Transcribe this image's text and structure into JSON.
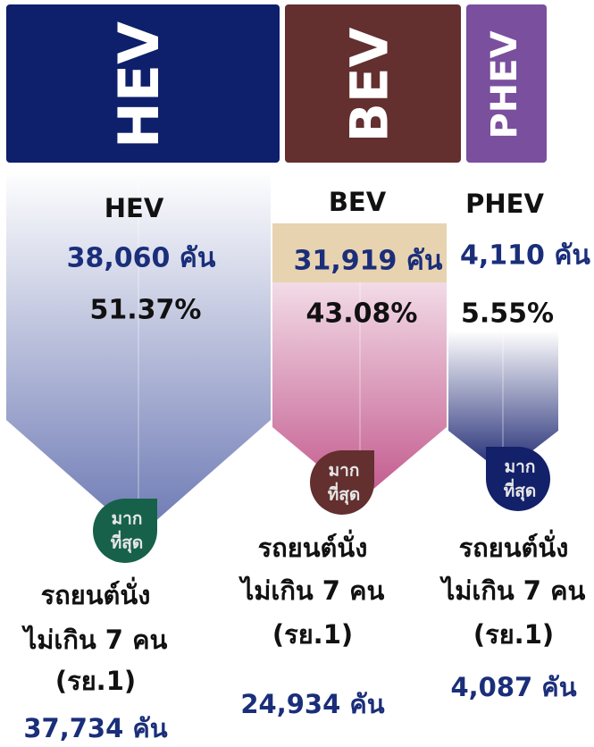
{
  "columns": [
    {
      "banner": "HEV",
      "name": "HEV",
      "count": "38,060 คัน",
      "share": "51.37%",
      "badge": [
        "มาก",
        "ที่สุด"
      ],
      "top_type": [
        "รถยนต์นั่ง",
        "ไม่เกิน 7 คน",
        "(รย.1)"
      ],
      "top_count": "37,734 คัน"
    },
    {
      "banner": "BEV",
      "name": "BEV",
      "count": "31,919 คัน",
      "share": "43.08%",
      "badge": [
        "มาก",
        "ที่สุด"
      ],
      "top_type": [
        "รถยนต์นั่ง",
        "ไม่เกิน 7 คน",
        "(รย.1)"
      ],
      "top_count": "24,934 คัน"
    },
    {
      "banner": "PHEV",
      "name": "PHEV",
      "count": "4,110 คัน",
      "share": "5.55%",
      "badge": [
        "มาก",
        "ที่สุด"
      ],
      "top_type": [
        "รถยนต์นั่ง",
        "ไม่เกิน 7 คน",
        "(รย.1)"
      ],
      "top_count": "4,087 คัน"
    }
  ]
}
